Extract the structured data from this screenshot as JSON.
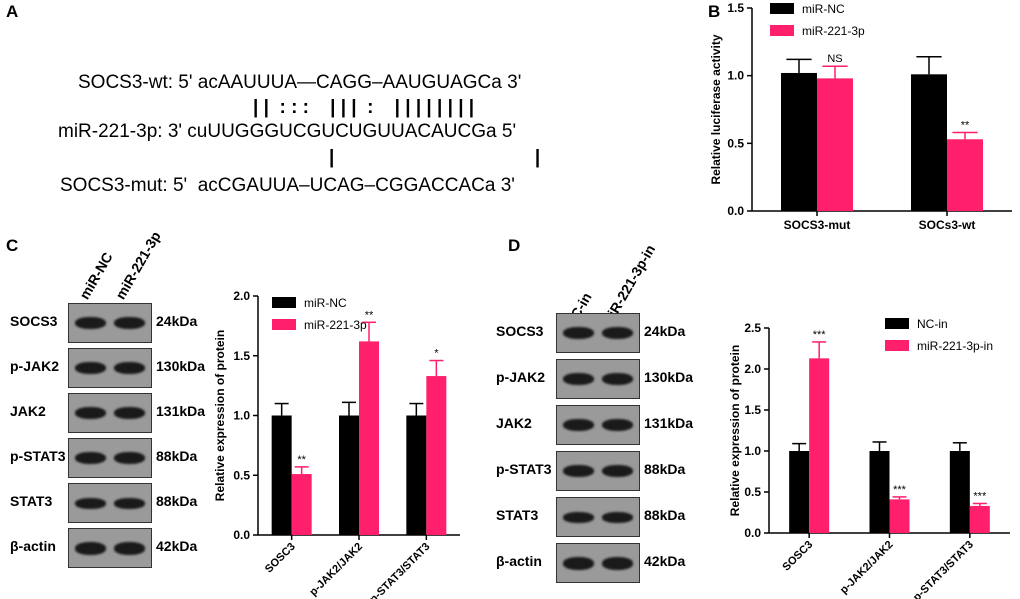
{
  "panels": {
    "a": "A",
    "b": "B",
    "c": "C",
    "d": "D"
  },
  "panel_a": {
    "wt_line": "SOCS3-wt: 5' acAAUUUA—CAGG–AAUGUAGCa 3'",
    "pair_line_1": "| |  : : :    | | |  :    | | | | | | | |",
    "mir_line": "miR-221-3p: 3' cuUUGGGUCGUCUGUUACAUCGa 5'",
    "pair_line_2": "|                                      |",
    "mut_line": "SOCS3-mut: 5'  acCGAUUA–UCAG–CGGACCACa 3'"
  },
  "blot_c": {
    "lanes": [
      "miR-NC",
      "miR-221-3p"
    ],
    "rows": [
      {
        "protein": "SOCS3",
        "kda": "24kDa"
      },
      {
        "protein": "p-JAK2",
        "kda": "130kDa"
      },
      {
        "protein": "JAK2",
        "kda": "131kDa"
      },
      {
        "protein": "p-STAT3",
        "kda": "88kDa"
      },
      {
        "protein": "STAT3",
        "kda": "88kDa"
      },
      {
        "protein": "β-actin",
        "kda": "42kDa"
      }
    ]
  },
  "blot_d": {
    "lanes": [
      "NC-in",
      "miR-221-3p-in"
    ],
    "rows": [
      {
        "protein": "SOCS3",
        "kda": "24kDa"
      },
      {
        "protein": "p-JAK2",
        "kda": "130kDa"
      },
      {
        "protein": "JAK2",
        "kda": "131kDa"
      },
      {
        "protein": "p-STAT3",
        "kda": "88kDa"
      },
      {
        "protein": "STAT3",
        "kda": "88kDa"
      },
      {
        "protein": "β-actin",
        "kda": "42kDa"
      }
    ]
  },
  "colors": {
    "control": "#000000",
    "treatment": "#ff1f6d"
  },
  "chart_data": [
    {
      "id": "B",
      "type": "bar",
      "ylabel": "Relative luciferase activity",
      "ylim": [
        0,
        1.5
      ],
      "yticks": [
        "0.0",
        "0.5",
        "1.0",
        "1.5"
      ],
      "categories": [
        "SOCS3-mut",
        "SOCs3-wt"
      ],
      "legend_position": "top-left",
      "series": [
        {
          "name": "miR-NC",
          "values": [
            1.02,
            1.01
          ],
          "errors": [
            0.1,
            0.13
          ]
        },
        {
          "name": "miR-221-3p",
          "values": [
            0.98,
            0.53
          ],
          "errors": [
            0.09,
            0.05
          ]
        }
      ],
      "annotations": [
        {
          "series": 1,
          "index": 0,
          "text": "NS"
        },
        {
          "series": 1,
          "index": 1,
          "text": "**"
        }
      ]
    },
    {
      "id": "C",
      "type": "bar",
      "ylabel": "Relative expression of protein",
      "ylim": [
        0,
        2.0
      ],
      "yticks": [
        "0.0",
        "0.5",
        "1.0",
        "1.5",
        "2.0"
      ],
      "categories": [
        "SOSC3",
        "p-JAK2/JAK2",
        "p-STAT3/STAT3"
      ],
      "legend_position": "top-left",
      "series": [
        {
          "name": "miR-NC",
          "values": [
            1.0,
            1.0,
            1.0
          ],
          "errors": [
            0.1,
            0.11,
            0.1
          ]
        },
        {
          "name": "miR-221-3p",
          "values": [
            0.51,
            1.62,
            1.33
          ],
          "errors": [
            0.06,
            0.16,
            0.13
          ]
        }
      ],
      "annotations": [
        {
          "series": 1,
          "index": 0,
          "text": "**"
        },
        {
          "series": 1,
          "index": 1,
          "text": "**"
        },
        {
          "series": 1,
          "index": 2,
          "text": "*"
        }
      ]
    },
    {
      "id": "D",
      "type": "bar",
      "ylabel": "Relative expression of protein",
      "ylim": [
        0,
        2.5
      ],
      "yticks": [
        "0.0",
        "0.5",
        "1.0",
        "1.5",
        "2.0",
        "2.5"
      ],
      "categories": [
        "SOSC3",
        "p-JAK2/JAK2",
        "p-STAT3/STAT3"
      ],
      "legend_position": "top-right",
      "series": [
        {
          "name": "NC-in",
          "values": [
            1.0,
            1.0,
            1.0
          ],
          "errors": [
            0.09,
            0.11,
            0.1
          ]
        },
        {
          "name": "miR-221-3p-in",
          "values": [
            2.13,
            0.41,
            0.33
          ],
          "errors": [
            0.2,
            0.03,
            0.03
          ]
        }
      ],
      "annotations": [
        {
          "series": 1,
          "index": 0,
          "text": "***"
        },
        {
          "series": 1,
          "index": 1,
          "text": "***"
        },
        {
          "series": 1,
          "index": 2,
          "text": "***"
        }
      ]
    }
  ]
}
